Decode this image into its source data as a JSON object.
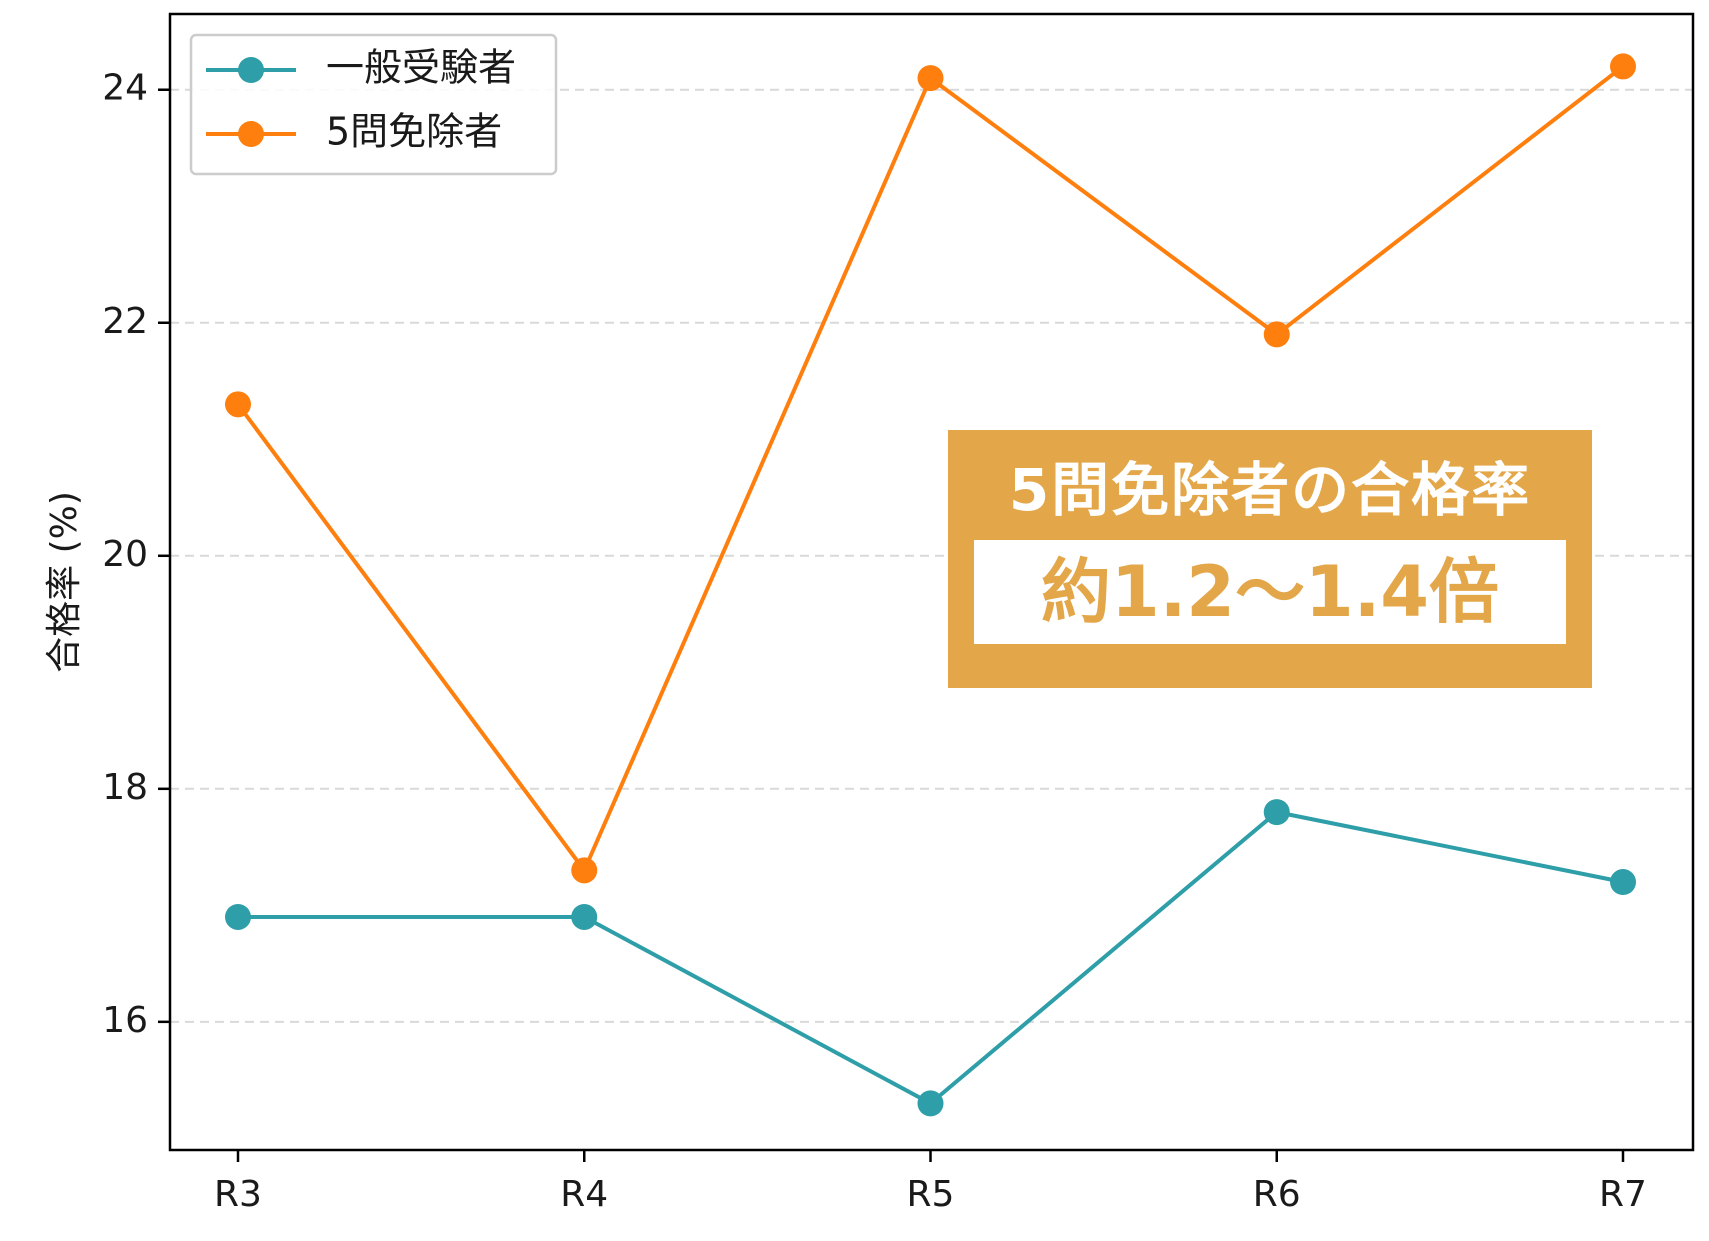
{
  "chart_data": {
    "type": "line",
    "categories": [
      "R3",
      "R4",
      "R5",
      "R6",
      "R7"
    ],
    "series": [
      {
        "name": "一般受験者",
        "values": [
          16.9,
          16.9,
          15.3,
          17.8,
          17.2
        ],
        "color": "#2e9ea8"
      },
      {
        "name": "5問免除者",
        "values": [
          21.3,
          17.3,
          24.1,
          21.9,
          24.2
        ],
        "color": "#ff7f0e"
      }
    ],
    "title": "",
    "xlabel": "",
    "ylabel": "合格率 (%)",
    "ylim": [
      14.9,
      24.65
    ],
    "yticks": [
      16,
      18,
      20,
      22,
      24
    ],
    "grid": "horizontal dashed",
    "legend_position": "top-left",
    "annotation": {
      "title": "5問免除者の合格率",
      "value": "約1.2〜1.4倍",
      "color": "#e3a74a"
    }
  }
}
